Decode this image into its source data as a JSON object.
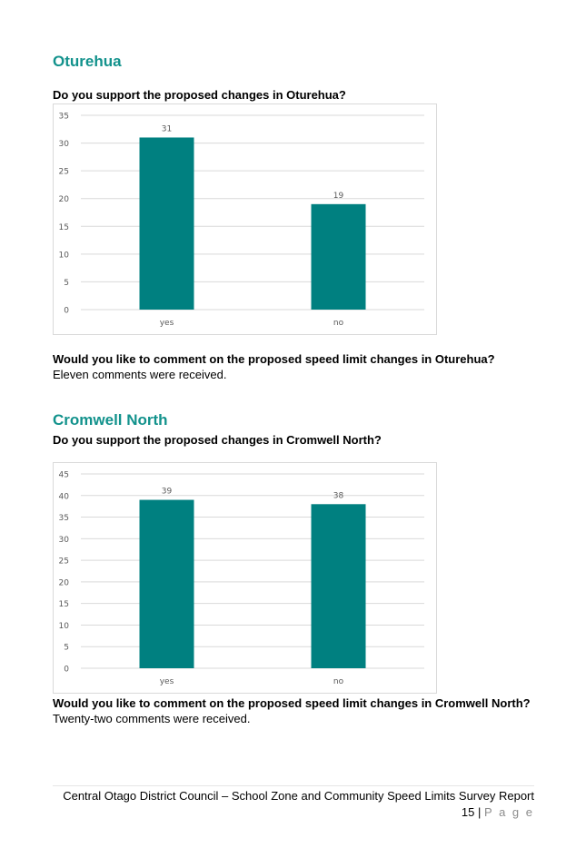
{
  "section1": {
    "heading": "Oturehua",
    "question": "Do you support the proposed changes in Oturehua?",
    "comment_question": "Would you like to comment on the proposed speed limit changes in Oturehua?",
    "comment_answer": "Eleven comments were received."
  },
  "section2": {
    "heading": "Cromwell North",
    "question": "Do you support the proposed changes in Cromwell North?",
    "comment_question": "Would you like to comment on the proposed speed limit changes in Cromwell North?",
    "comment_answer": "Twenty-two comments were received."
  },
  "footer": {
    "text": "Central Otago District Council – School Zone and Community Speed Limits Survey Report",
    "page_number": "15",
    "separator": "|",
    "page_word": "P a g e"
  },
  "colors": {
    "heading": "#12928c",
    "bar": "#008080",
    "grid": "#d9d9d9",
    "tick": "#595959"
  },
  "chart_data": [
    {
      "type": "bar",
      "categories": [
        "yes",
        "no"
      ],
      "values": [
        31,
        19
      ],
      "ylim": [
        0,
        35
      ],
      "yticks": [
        0,
        5,
        10,
        15,
        20,
        25,
        30,
        35
      ],
      "data_labels": true,
      "grid": true,
      "legend": "none"
    },
    {
      "type": "bar",
      "categories": [
        "yes",
        "no"
      ],
      "values": [
        39,
        38
      ],
      "ylim": [
        0,
        45
      ],
      "yticks": [
        0,
        5,
        10,
        15,
        20,
        25,
        30,
        35,
        40,
        45
      ],
      "data_labels": true,
      "grid": true,
      "legend": "none"
    }
  ]
}
